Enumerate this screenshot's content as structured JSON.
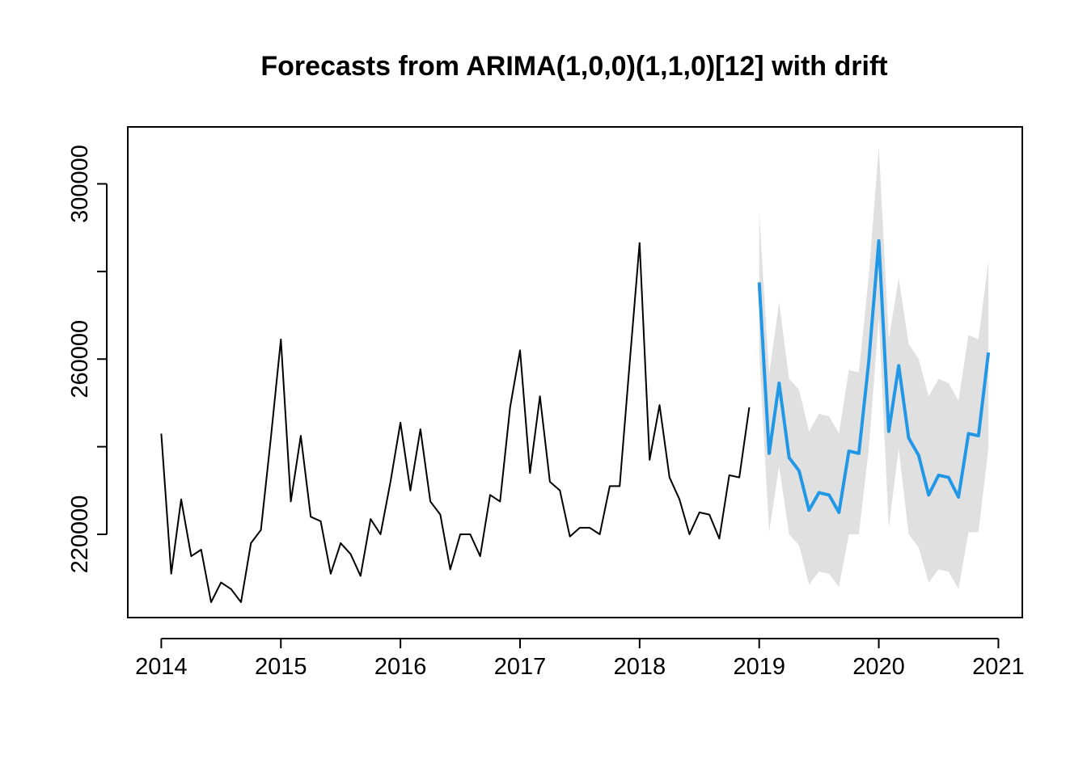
{
  "chart_data": {
    "type": "line",
    "title": "Forecasts from ARIMA(1,0,0)(1,1,0)[12] with drift",
    "xlabel": "",
    "ylabel": "",
    "xlim": [
      2013.72,
      2021.2
    ],
    "ylim": [
      201000,
      313000
    ],
    "x_ticks": [
      2014,
      2015,
      2016,
      2017,
      2018,
      2019,
      2020,
      2021
    ],
    "x_tick_labels": [
      "2014",
      "2015",
      "2016",
      "2017",
      "2018",
      "2019",
      "2020",
      "2021"
    ],
    "y_ticks": [
      220000,
      240000,
      260000,
      280000,
      300000
    ],
    "y_tick_labels": [
      "220000",
      "",
      "260000",
      "",
      "300000"
    ],
    "grid": false,
    "colors": {
      "observed": "#000000",
      "forecast": "#2297e6",
      "interval": "#e0e0e0"
    },
    "observed": {
      "start": 2014.0,
      "frequency": 12,
      "values": [
        243000,
        211000,
        228000,
        215000,
        216500,
        204500,
        209000,
        207500,
        204500,
        218000,
        221000,
        242000,
        264500,
        227500,
        242500,
        224000,
        223000,
        211000,
        218000,
        215500,
        210500,
        223500,
        220000,
        232000,
        245500,
        230000,
        244000,
        227500,
        224500,
        212000,
        220000,
        220000,
        215000,
        229000,
        227500,
        249000,
        262000,
        234000,
        251500,
        232000,
        230000,
        219500,
        221500,
        221500,
        220000,
        231000,
        231000,
        259000,
        286500,
        237000,
        249500,
        233000,
        228000,
        220000,
        225000,
        224500,
        219000,
        233500,
        233000,
        249000
      ]
    },
    "forecast": {
      "start": 2019.0,
      "frequency": 12,
      "mean": [
        277500,
        238500,
        254500,
        237500,
        234500,
        225500,
        229500,
        229000,
        225000,
        239000,
        238500,
        259500,
        287000,
        243500,
        258500,
        242000,
        238000,
        229000,
        233500,
        233000,
        228500,
        243000,
        242500,
        261500
      ],
      "lo95": [
        261500,
        220500,
        235500,
        220000,
        217500,
        208500,
        211500,
        211000,
        208000,
        220000,
        220000,
        239500,
        269500,
        221500,
        239500,
        220000,
        217000,
        209000,
        212000,
        211500,
        207500,
        220500,
        220500,
        239500
      ],
      "hi95": [
        293500,
        256500,
        273000,
        255500,
        253000,
        243500,
        247500,
        247000,
        243000,
        257500,
        257000,
        279000,
        308500,
        264500,
        278500,
        263500,
        260000,
        251500,
        255500,
        254500,
        250500,
        265500,
        264500,
        282500
      ]
    }
  }
}
